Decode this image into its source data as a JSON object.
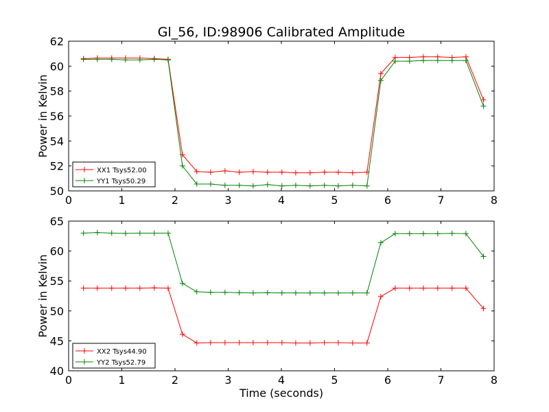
{
  "figure": {
    "title": "Gl_56, ID:98906 Calibrated Amplitude"
  },
  "chart_data": [
    {
      "type": "line",
      "title": "Gl_56, ID:98906 Calibrated Amplitude",
      "xlabel": "",
      "ylabel": "Power in Kelvin",
      "xlim": [
        0,
        8
      ],
      "ylim": [
        50,
        62
      ],
      "xticks": [
        0,
        1,
        2,
        3,
        4,
        5,
        6,
        7,
        8
      ],
      "yticks": [
        50,
        52,
        54,
        56,
        58,
        60,
        62
      ],
      "xtick_labels": [
        "0",
        "1",
        "2",
        "3",
        "4",
        "5",
        "6",
        "7",
        "8"
      ],
      "ytick_labels": [
        "50",
        "52",
        "54",
        "56",
        "58",
        "60",
        "62"
      ],
      "grid": false,
      "legend_position": "lower-left",
      "x": [
        0.28,
        0.54,
        0.81,
        1.07,
        1.34,
        1.61,
        1.87,
        2.14,
        2.41,
        2.67,
        2.94,
        3.21,
        3.47,
        3.74,
        4.01,
        4.27,
        4.54,
        4.81,
        5.07,
        5.34,
        5.61,
        5.87,
        6.14,
        6.41,
        6.67,
        6.94,
        7.21,
        7.47,
        7.8
      ],
      "series": [
        {
          "name": "XX1 Tsys52.00",
          "color": "#ff0000",
          "values": [
            60.6,
            60.65,
            60.65,
            60.65,
            60.65,
            60.6,
            60.55,
            52.9,
            51.55,
            51.5,
            51.6,
            51.5,
            51.55,
            51.5,
            51.5,
            51.45,
            51.45,
            51.5,
            51.5,
            51.45,
            51.5,
            59.4,
            60.7,
            60.7,
            60.75,
            60.75,
            60.7,
            60.75,
            57.3
          ]
        },
        {
          "name": "YY1 Tsys50.29",
          "color": "#008000",
          "values": [
            60.55,
            60.55,
            60.55,
            60.5,
            60.5,
            60.55,
            60.5,
            52.0,
            50.55,
            50.55,
            50.45,
            50.45,
            50.4,
            50.5,
            50.4,
            50.45,
            50.4,
            50.45,
            50.4,
            50.45,
            50.4,
            58.85,
            60.4,
            60.4,
            60.45,
            60.45,
            60.45,
            60.45,
            56.8
          ]
        }
      ]
    },
    {
      "type": "line",
      "title": "",
      "xlabel": "Time (seconds)",
      "ylabel": "Power in Kelvin",
      "xlim": [
        0,
        8
      ],
      "ylim": [
        40,
        65
      ],
      "xticks": [
        0,
        1,
        2,
        3,
        4,
        5,
        6,
        7,
        8
      ],
      "yticks": [
        40,
        45,
        50,
        55,
        60,
        65
      ],
      "xtick_labels": [
        "0",
        "1",
        "2",
        "3",
        "4",
        "5",
        "6",
        "7",
        "8"
      ],
      "ytick_labels": [
        "40",
        "45",
        "50",
        "55",
        "60",
        "65"
      ],
      "grid": false,
      "legend_position": "lower-left",
      "x": [
        0.28,
        0.54,
        0.81,
        1.07,
        1.34,
        1.61,
        1.87,
        2.14,
        2.41,
        2.67,
        2.94,
        3.21,
        3.47,
        3.74,
        4.01,
        4.27,
        4.54,
        4.81,
        5.07,
        5.34,
        5.61,
        5.87,
        6.14,
        6.41,
        6.67,
        6.94,
        7.21,
        7.47,
        7.8
      ],
      "series": [
        {
          "name": "XX2 Tsys44.90",
          "color": "#ff0000",
          "values": [
            53.8,
            53.8,
            53.8,
            53.8,
            53.8,
            53.85,
            53.8,
            46.1,
            44.65,
            44.7,
            44.7,
            44.7,
            44.7,
            44.7,
            44.7,
            44.65,
            44.65,
            44.7,
            44.7,
            44.65,
            44.65,
            52.4,
            53.8,
            53.8,
            53.8,
            53.8,
            53.8,
            53.8,
            50.4
          ]
        },
        {
          "name": "YY2 Tsys52.79",
          "color": "#008000",
          "values": [
            63.0,
            63.1,
            63.0,
            62.95,
            63.0,
            63.0,
            63.0,
            54.6,
            53.2,
            53.1,
            53.1,
            53.05,
            53.0,
            53.05,
            53.0,
            53.0,
            53.0,
            53.0,
            53.0,
            53.0,
            53.0,
            61.4,
            62.9,
            62.9,
            62.9,
            62.9,
            62.95,
            62.9,
            59.1
          ]
        }
      ]
    }
  ]
}
